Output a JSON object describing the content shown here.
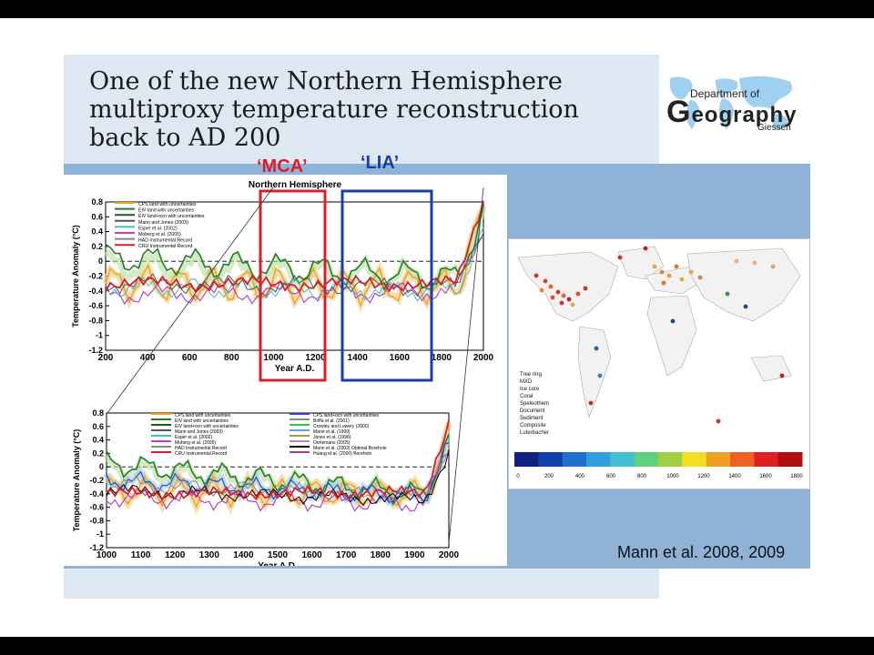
{
  "slide": {
    "title_lines": [
      "One of the new Northern Hemisphere",
      "multiproxy temperature reconstruction",
      "back to AD 200"
    ],
    "credit": "Mann et al. 2008, 2009"
  },
  "logo": {
    "line1": "Department of",
    "big_letter": "G",
    "big_rest": "eography",
    "line3": "Giessen"
  },
  "regions": {
    "mca": "‘MCA’",
    "lia": "‘LIA’",
    "mca_color": "#d81e2a",
    "lia_color": "#1a3ea8"
  },
  "top_chart": {
    "title": "Northern Hemisphere",
    "ylabel": "Temperature Anomaly (°C)",
    "xlabel": "Year A.D.",
    "yticks": [
      "0.8",
      "0.6",
      "0.4",
      "0.2",
      "0",
      "-0.2",
      "-0.4",
      "-0.6",
      "-0.8",
      "-1",
      "-1.2"
    ],
    "xticks": [
      "200",
      "400",
      "600",
      "800",
      "1000",
      "1200",
      "1400",
      "1600",
      "1800",
      "2000"
    ],
    "legend": [
      "CPS land with uncertainties",
      "EIV land with uncertainties",
      "EIV land+ocn with uncertainties",
      "Mann and Jones (2003)",
      "Esper et al. (2002)",
      "Moberg et al. (2005)",
      "HAD Instrumental Record",
      "CRU Instrumental Record"
    ]
  },
  "bottom_chart": {
    "ylabel": "Temperature Anomaly (°C)",
    "xlabel": "Year A.D.",
    "yticks": [
      "0.8",
      "0.6",
      "0.4",
      "0.2",
      "0",
      "-0.2",
      "-0.4",
      "-0.6",
      "-0.8",
      "-1",
      "-1.2"
    ],
    "xticks": [
      "1000",
      "1100",
      "1200",
      "1300",
      "1400",
      "1500",
      "1600",
      "1700",
      "1800",
      "1900",
      "2000"
    ],
    "legend_left": [
      "CPS land with uncertainties",
      "EIV land with uncertainties",
      "EIV land+ocn with uncertainties",
      "Mann and Jones (2003)",
      "Esper et al. (2002)",
      "Moberg et al. (2005)",
      "HAD Instrumental Record",
      "CRU Instrumental Record"
    ],
    "legend_right": [
      "CPS land+ocn with uncertainties",
      "Briffa et al. (2001)",
      "Crowley and Lowery (2000)",
      "Mann et al. (1999)",
      "Jones et al. (1998)",
      "Oerlemans (2005)",
      "Mann et al. (2003) Optimal Borehole",
      "Huang et al. (2000) Borehole"
    ]
  },
  "map": {
    "legend": [
      "Tree ring",
      "MXD",
      "Ice core",
      "Coral",
      "Speleothem",
      "Document",
      "Sediment",
      "Composite",
      "Luterbacher"
    ],
    "scale": [
      "0",
      "200",
      "400",
      "600",
      "800",
      "1000",
      "1200",
      "1400",
      "1600",
      "1800"
    ]
  }
}
